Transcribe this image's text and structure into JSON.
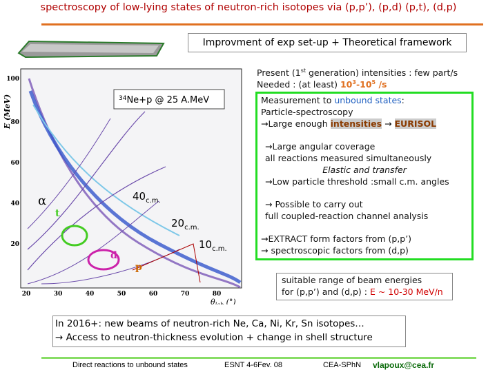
{
  "title": "spectroscopy of low-lying states of neutron-rich isotopes via (p,p’), (p,d) (p,t), (d,p)",
  "banner": "Improvment of exp set-up + Theoretical framework",
  "plot": {
    "y_label": "E (MeV)",
    "x_label": "θ",
    "x_label_sub": "lab",
    "x_label_unit": " (°)",
    "yticks": [
      "100",
      "80",
      "60",
      "40",
      "20"
    ],
    "xticks": [
      "20",
      "30",
      "40",
      "50",
      "60",
      "70",
      "80"
    ],
    "reaction": {
      "mass": "34",
      "text": "Ne+p @ 25 A.MeV"
    },
    "labels": {
      "alpha": "α",
      "t": "t",
      "d": "d",
      "p": "p",
      "a40": "40",
      "a20": "20",
      "a10": "10",
      "cm": "c.m."
    }
  },
  "intensities": {
    "line1": [
      "Present (1",
      "st",
      " generation) intensities : few part/s"
    ],
    "line2": [
      "Needed : (at least) ",
      "10",
      "3",
      "-10",
      "5",
      " /s"
    ]
  },
  "green_box": {
    "l1": [
      "Measurement to ",
      "unbound states",
      ":"
    ],
    "l2": "Particle-spectroscopy",
    "l3": [
      "→Large enough ",
      "intensities",
      " → ",
      "EURISOL"
    ],
    "l4": "→Large angular coverage",
    "l5": "all reactions measured simultaneously",
    "l6": "Elastic and transfer",
    "l7": "→Low particle threshold :small c.m. angles",
    "l8": "→  Possible to carry out",
    "l9": "full coupled-reaction channel analysis",
    "l10": "→EXTRACT form factors from (p,p’)",
    "l11": "→ spectroscopic factors from (d,p)"
  },
  "energy_box": {
    "l1": "suitable range of beam energies",
    "l2": [
      "for (p,p’) and (d,p) : ",
      "E ~ 10-30 MeV/n"
    ]
  },
  "outlook": {
    "l1": "In 2016+: new beams of neutron-rich Ne, Ca, Ni, Kr, Sn isotopes…",
    "l2": "→ Access to neutron-thickness evolution + change in shell structure"
  },
  "footer": {
    "topic": "Direct reactions to unbound states",
    "event": "ESNT 4-6Fev. 08",
    "lab": "CEA-SPhN",
    "email": "vlapoux@cea.fr"
  }
}
